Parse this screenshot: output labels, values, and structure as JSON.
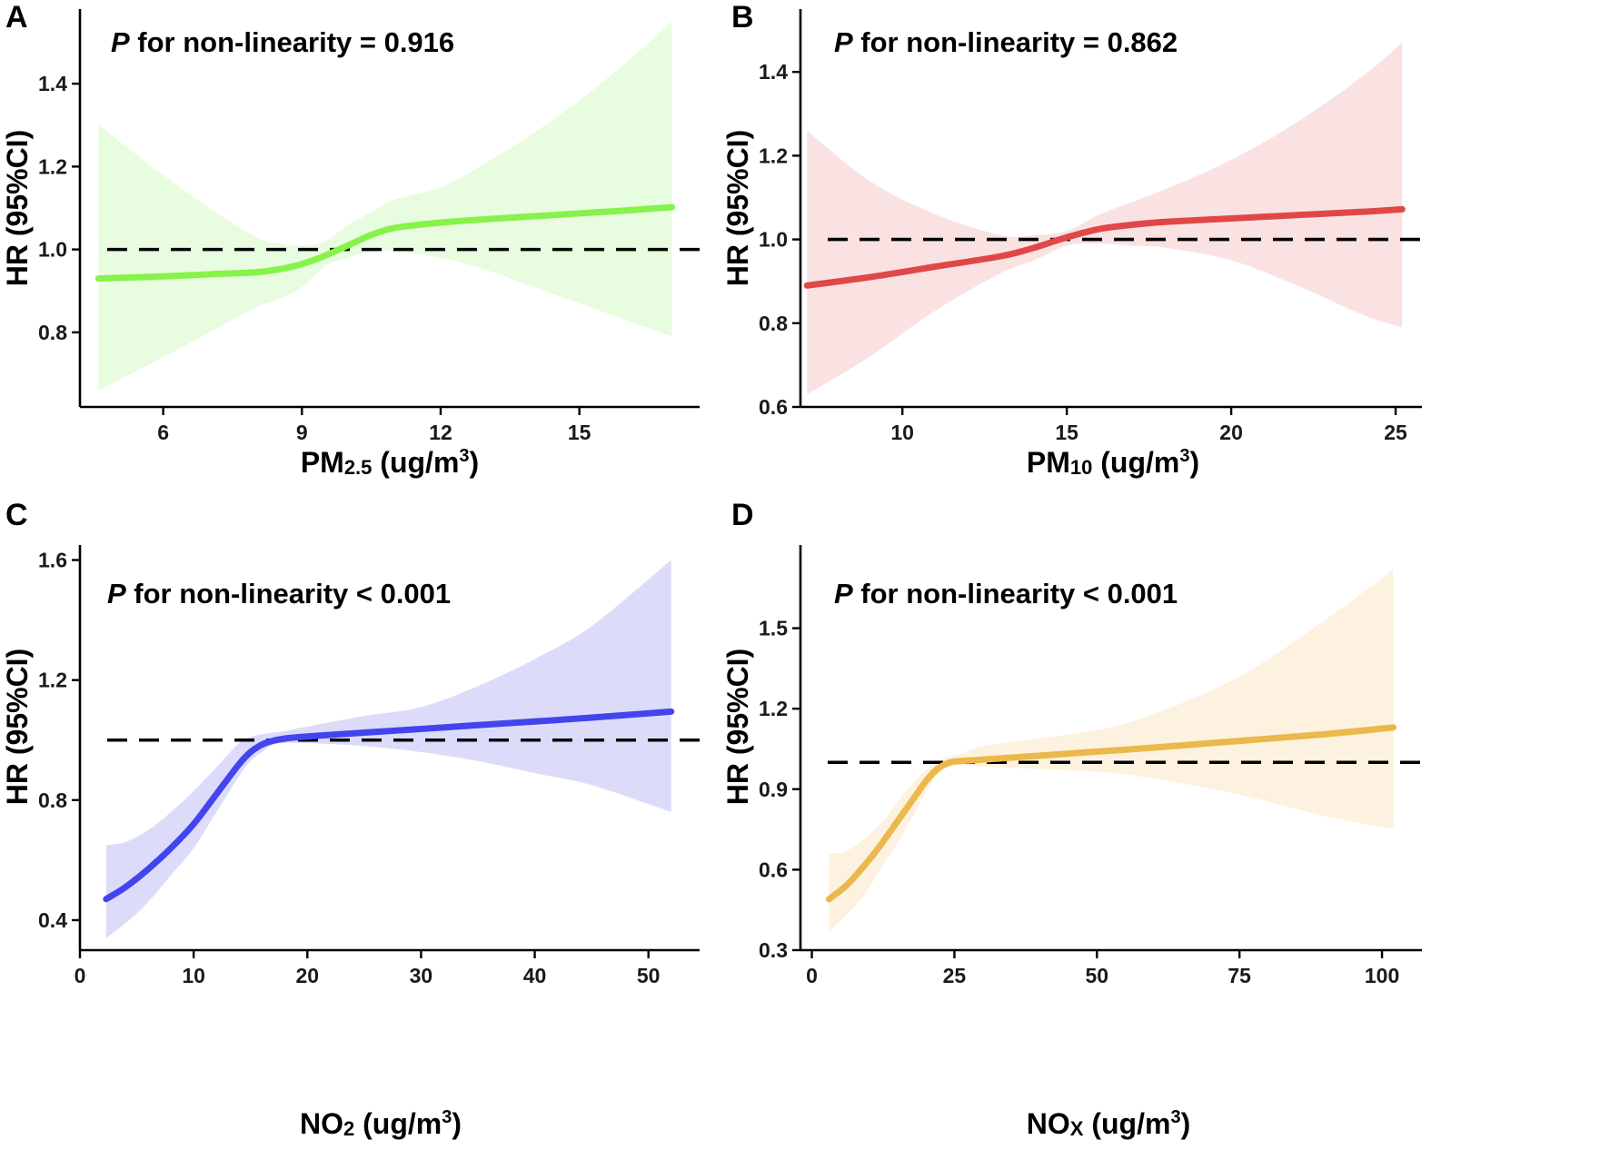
{
  "figure": {
    "background": "#ffffff"
  },
  "chart_data": [
    {
      "type": "line",
      "panel": "A",
      "annotation_p": "P",
      "annotation_rest": " for non-linearity = 0.916",
      "xlabel_main": "PM",
      "xlabel_sub": "2.5",
      "xlabel_unit": " (ug/m",
      "xlabel_sup": "3",
      "xlabel_close": ")",
      "ylabel": "HR (95%CI)",
      "xlim": [
        4.2,
        17.6
      ],
      "ylim": [
        0.62,
        1.58
      ],
      "xticks": [
        6,
        9,
        12,
        15
      ],
      "xtick_labels": [
        "6",
        "9",
        "12",
        "15"
      ],
      "yticks": [
        0.8,
        1.0,
        1.2,
        1.4
      ],
      "ytick_labels": [
        "0.8",
        "1.0",
        "1.2",
        "1.4"
      ],
      "reference_y": 1.0,
      "color": "#86f24a",
      "band_color": "#e8fce0",
      "series": [
        {
          "name": "HR",
          "x": [
            4.6,
            6,
            7,
            8,
            8.5,
            9,
            9.5,
            10,
            10.5,
            11,
            12,
            13,
            14,
            15,
            16,
            17
          ],
          "values": [
            0.93,
            0.935,
            0.94,
            0.945,
            0.952,
            0.965,
            0.985,
            1.01,
            1.035,
            1.052,
            1.065,
            1.073,
            1.08,
            1.087,
            1.094,
            1.102
          ]
        },
        {
          "name": "Lower 95%CI",
          "x": [
            4.6,
            6,
            7,
            8,
            8.5,
            9,
            9.5,
            10,
            10.5,
            11,
            12,
            13,
            14,
            15,
            16,
            17
          ],
          "values": [
            0.66,
            0.74,
            0.8,
            0.86,
            0.88,
            0.91,
            0.96,
            0.98,
            0.995,
            0.995,
            0.98,
            0.95,
            0.91,
            0.87,
            0.83,
            0.79
          ]
        },
        {
          "name": "Upper 95%CI",
          "x": [
            4.6,
            6,
            7,
            8,
            8.5,
            9,
            9.5,
            10,
            10.5,
            11,
            12,
            13,
            14,
            15,
            16,
            17
          ],
          "values": [
            1.3,
            1.18,
            1.1,
            1.03,
            1.015,
            1.01,
            1.02,
            1.06,
            1.09,
            1.12,
            1.15,
            1.21,
            1.28,
            1.36,
            1.45,
            1.55
          ]
        }
      ]
    },
    {
      "type": "line",
      "panel": "B",
      "annotation_p": "P",
      "annotation_rest": " for non-linearity = 0.862",
      "xlabel_main": "PM",
      "xlabel_sub": "10",
      "xlabel_unit": " (ug/m",
      "xlabel_sup": "3",
      "xlabel_close": ")",
      "ylabel": "HR (95%CI)",
      "xlim": [
        6.9,
        25.8
      ],
      "ylim": [
        0.6,
        1.55
      ],
      "xticks": [
        10,
        15,
        20,
        25
      ],
      "xtick_labels": [
        "10",
        "15",
        "20",
        "25"
      ],
      "yticks": [
        0.6,
        0.8,
        1.0,
        1.2,
        1.4
      ],
      "ytick_labels": [
        "0.6",
        "0.8",
        "1.0",
        "1.2",
        "1.4"
      ],
      "reference_y": 1.0,
      "color": "#e04848",
      "band_color": "#fbe2e2",
      "series": [
        {
          "name": "HR",
          "x": [
            7.1,
            9,
            11,
            13,
            14,
            15,
            16,
            17,
            18,
            20,
            22,
            24,
            25.2
          ],
          "values": [
            0.89,
            0.91,
            0.935,
            0.96,
            0.98,
            1.005,
            1.025,
            1.035,
            1.042,
            1.05,
            1.058,
            1.066,
            1.072
          ]
        },
        {
          "name": "Lower 95%CI",
          "x": [
            7.1,
            9,
            11,
            13,
            14,
            15,
            16,
            17,
            18,
            20,
            22,
            24,
            25.2
          ],
          "values": [
            0.63,
            0.72,
            0.83,
            0.92,
            0.95,
            0.985,
            0.99,
            0.985,
            0.98,
            0.95,
            0.89,
            0.82,
            0.79
          ]
        },
        {
          "name": "Upper 95%CI",
          "x": [
            7.1,
            9,
            11,
            13,
            14,
            15,
            16,
            17,
            18,
            20,
            22,
            24,
            25.2
          ],
          "values": [
            1.26,
            1.14,
            1.06,
            1.01,
            1.01,
            1.02,
            1.06,
            1.09,
            1.12,
            1.19,
            1.28,
            1.39,
            1.47
          ]
        }
      ]
    },
    {
      "type": "line",
      "panel": "C",
      "annotation_p": "P",
      "annotation_rest": " for non-linearity < 0.001",
      "xlabel_main": "NO",
      "xlabel_sub": "2",
      "xlabel_unit": " (ug/m",
      "xlabel_sup": "3",
      "xlabel_close": ")",
      "ylabel": "HR (95%CI)",
      "xlim": [
        0,
        54.5
      ],
      "ylim": [
        0.3,
        1.65
      ],
      "xticks": [
        0,
        10,
        20,
        30,
        40,
        50
      ],
      "xtick_labels": [
        "0",
        "10",
        "20",
        "30",
        "40",
        "50"
      ],
      "yticks": [
        0.4,
        0.8,
        1.2,
        1.6
      ],
      "ytick_labels": [
        "0.4",
        "0.8",
        "1.2",
        "1.6"
      ],
      "reference_y": 1.0,
      "color": "#4444ee",
      "band_color": "#dcdcfa",
      "series": [
        {
          "name": "HR",
          "x": [
            2.3,
            4,
            6,
            8,
            10,
            12,
            14,
            15,
            16,
            17,
            18,
            20,
            25,
            30,
            35,
            40,
            45,
            52
          ],
          "values": [
            0.47,
            0.51,
            0.57,
            0.64,
            0.72,
            0.82,
            0.92,
            0.96,
            0.985,
            0.998,
            1.005,
            1.012,
            1.025,
            1.037,
            1.05,
            1.062,
            1.075,
            1.095
          ]
        },
        {
          "name": "Lower 95%CI",
          "x": [
            2.3,
            4,
            6,
            8,
            10,
            12,
            14,
            15,
            16,
            17,
            18,
            20,
            25,
            30,
            35,
            40,
            45,
            52
          ],
          "values": [
            0.34,
            0.39,
            0.46,
            0.55,
            0.64,
            0.76,
            0.88,
            0.93,
            0.96,
            0.985,
            0.99,
            0.99,
            0.98,
            0.96,
            0.93,
            0.89,
            0.85,
            0.76
          ]
        },
        {
          "name": "Upper 95%CI",
          "x": [
            2.3,
            4,
            6,
            8,
            10,
            12,
            14,
            15,
            16,
            17,
            18,
            20,
            25,
            30,
            35,
            40,
            45,
            52
          ],
          "values": [
            0.65,
            0.66,
            0.7,
            0.76,
            0.83,
            0.91,
            0.99,
            1.01,
            1.02,
            1.025,
            1.03,
            1.045,
            1.08,
            1.11,
            1.18,
            1.27,
            1.38,
            1.6
          ]
        }
      ]
    },
    {
      "type": "line",
      "panel": "D",
      "annotation_p": "P",
      "annotation_rest": " for non-linearity < 0.001",
      "xlabel_main": "NO",
      "xlabel_sub": "X",
      "xlabel_unit": " (ug/m",
      "xlabel_sup": "3",
      "xlabel_close": ")",
      "ylabel": "HR (95%CI)",
      "xlim": [
        -2,
        107
      ],
      "ylim": [
        0.3,
        1.81
      ],
      "xticks": [
        0,
        25,
        50,
        75,
        100
      ],
      "xtick_labels": [
        "0",
        "25",
        "50",
        "75",
        "100"
      ],
      "yticks": [
        0.3,
        0.6,
        0.9,
        1.2,
        1.5
      ],
      "ytick_labels": [
        "0.3",
        "0.6",
        "0.9",
        "1.2",
        "1.5"
      ],
      "reference_y": 1.0,
      "color": "#eab84b",
      "band_color": "#fdf1df",
      "series": [
        {
          "name": "HR",
          "x": [
            3,
            6,
            9,
            12,
            15,
            18,
            20,
            22,
            24,
            26,
            30,
            40,
            50,
            60,
            75,
            90,
            102
          ],
          "values": [
            0.49,
            0.54,
            0.61,
            0.69,
            0.78,
            0.87,
            0.93,
            0.975,
            0.998,
            1.005,
            1.01,
            1.025,
            1.04,
            1.055,
            1.08,
            1.105,
            1.13
          ]
        },
        {
          "name": "Lower 95%CI",
          "x": [
            3,
            6,
            9,
            12,
            15,
            18,
            20,
            22,
            24,
            26,
            30,
            40,
            50,
            60,
            75,
            90,
            102
          ],
          "values": [
            0.37,
            0.43,
            0.5,
            0.6,
            0.7,
            0.81,
            0.89,
            0.95,
            0.985,
            0.99,
            0.985,
            0.975,
            0.965,
            0.94,
            0.88,
            0.8,
            0.75
          ]
        },
        {
          "name": "Upper 95%CI",
          "x": [
            3,
            6,
            9,
            12,
            15,
            18,
            20,
            22,
            24,
            26,
            30,
            40,
            50,
            60,
            75,
            90,
            102
          ],
          "values": [
            0.66,
            0.67,
            0.71,
            0.77,
            0.85,
            0.93,
            0.97,
            1.005,
            1.02,
            1.03,
            1.06,
            1.09,
            1.12,
            1.18,
            1.32,
            1.53,
            1.72
          ]
        }
      ]
    }
  ]
}
